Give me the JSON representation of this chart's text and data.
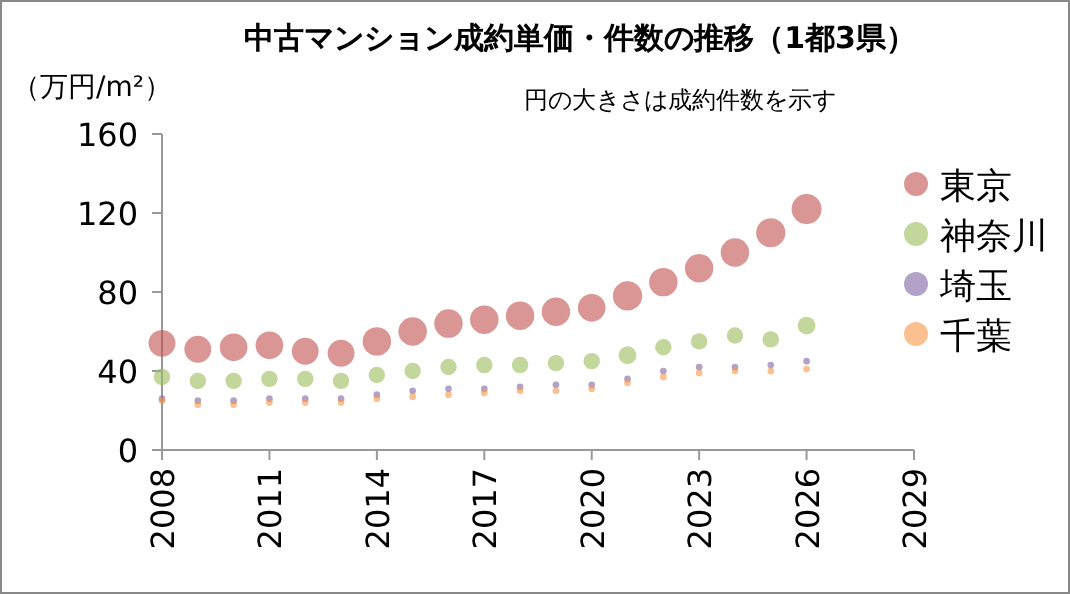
{
  "chart_data": {
    "type": "bubble",
    "title": "中古マンション成約単価・件数の推移（1都3県）",
    "ylabel": "（万円/m²）",
    "annotations": [
      "円の大きさは成約件数を示す"
    ],
    "xlim": [
      2008,
      2029
    ],
    "xticks": [
      2008,
      2011,
      2014,
      2017,
      2020,
      2023,
      2026,
      2029
    ],
    "ylim": [
      0,
      160
    ],
    "yticks": [
      0,
      40,
      80,
      120,
      160
    ],
    "grid": false,
    "legend": "right",
    "marker": "circle",
    "series": [
      {
        "name": "東京",
        "color": "#c0504d",
        "x": [
          2008,
          2009,
          2010,
          2011,
          2012,
          2013,
          2014,
          2015,
          2016,
          2017,
          2018,
          2019,
          2020,
          2021,
          2022,
          2023,
          2024,
          2025,
          2026
        ],
        "values": [
          54,
          51,
          52,
          53,
          50,
          49,
          55,
          60,
          64,
          66,
          68,
          70,
          72,
          78,
          85,
          92,
          100,
          110,
          122
        ],
        "sizes": [
          0.8,
          0.8,
          0.85,
          0.85,
          0.8,
          0.8,
          0.9,
          0.9,
          0.9,
          0.9,
          0.9,
          0.9,
          0.85,
          0.95,
          0.9,
          0.9,
          0.9,
          0.95,
          1
        ]
      },
      {
        "name": "神奈川",
        "color": "#9bbb59",
        "x": [
          2008,
          2009,
          2010,
          2011,
          2012,
          2013,
          2014,
          2015,
          2016,
          2017,
          2018,
          2019,
          2020,
          2021,
          2022,
          2023,
          2024,
          2025,
          2026
        ],
        "values": [
          37,
          35,
          35,
          36,
          36,
          35,
          38,
          40,
          42,
          43,
          43,
          44,
          45,
          48,
          52,
          55,
          58,
          56,
          63
        ],
        "sizes": [
          0.3,
          0.3,
          0.3,
          0.3,
          0.3,
          0.3,
          0.3,
          0.3,
          0.3,
          0.3,
          0.3,
          0.3,
          0.3,
          0.35,
          0.3,
          0.3,
          0.3,
          0.3,
          0.35
        ]
      },
      {
        "name": "埼玉",
        "color": "#8064a2",
        "x": [
          2008,
          2009,
          2010,
          2011,
          2012,
          2013,
          2014,
          2015,
          2016,
          2017,
          2018,
          2019,
          2020,
          2021,
          2022,
          2023,
          2024,
          2025,
          2026
        ],
        "values": [
          26,
          25,
          25,
          26,
          26,
          26,
          28,
          30,
          31,
          31,
          32,
          33,
          33,
          36,
          40,
          42,
          42,
          43,
          45
        ],
        "sizes": [
          0.05,
          0.05,
          0.05,
          0.05,
          0.05,
          0.05,
          0.05,
          0.05,
          0.05,
          0.05,
          0.05,
          0.05,
          0.05,
          0.05,
          0.05,
          0.05,
          0.05,
          0.05,
          0.05
        ]
      },
      {
        "name": "千葉",
        "color": "#f79646",
        "x": [
          2008,
          2009,
          2010,
          2011,
          2012,
          2013,
          2014,
          2015,
          2016,
          2017,
          2018,
          2019,
          2020,
          2021,
          2022,
          2023,
          2024,
          2025,
          2026
        ],
        "values": [
          25,
          23,
          23,
          24,
          24,
          24,
          26,
          27,
          28,
          29,
          30,
          30,
          31,
          34,
          37,
          39,
          40,
          40,
          41
        ],
        "sizes": [
          0.05,
          0.05,
          0.05,
          0.05,
          0.05,
          0.05,
          0.05,
          0.05,
          0.05,
          0.05,
          0.05,
          0.05,
          0.05,
          0.05,
          0.05,
          0.05,
          0.05,
          0.05,
          0.05
        ]
      }
    ]
  }
}
